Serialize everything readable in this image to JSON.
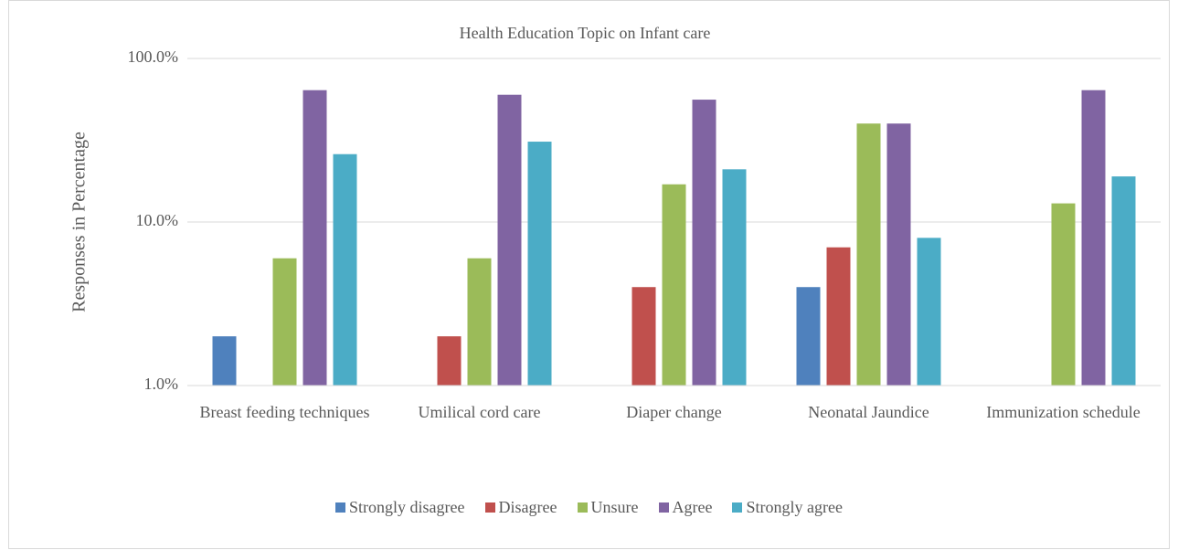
{
  "chart_data": {
    "type": "bar",
    "title": "Health Education Topic on Infant care",
    "y_label": "Responses in Percentage",
    "categories": [
      "Breast feeding techniques",
      "Umilical cord care",
      "Diaper change",
      "Neonatal Jaundice",
      "Immunization schedule"
    ],
    "series": [
      {
        "name": "Strongly disagree",
        "color": "#4f81bd",
        "values": [
          2,
          null,
          null,
          4,
          null
        ]
      },
      {
        "name": "Disagree",
        "color": "#c0504d",
        "values": [
          null,
          2,
          4,
          7,
          null
        ]
      },
      {
        "name": "Unsure",
        "color": "#9bbb59",
        "values": [
          6,
          6,
          17,
          40,
          13
        ]
      },
      {
        "name": "Agree",
        "color": "#8064a2",
        "values": [
          64,
          60,
          56,
          40,
          64
        ]
      },
      {
        "name": "Strongly agree",
        "color": "#4bacc6",
        "values": [
          26,
          31,
          21,
          8,
          19
        ]
      }
    ],
    "log_scale": true,
    "ylim": [
      1,
      100
    ],
    "yticks": [
      {
        "value": 1,
        "label": "1.0%"
      },
      {
        "value": 10,
        "label": "10.0%"
      },
      {
        "value": 100,
        "label": "100.0%"
      }
    ],
    "grid": true,
    "legend": "bottom"
  }
}
